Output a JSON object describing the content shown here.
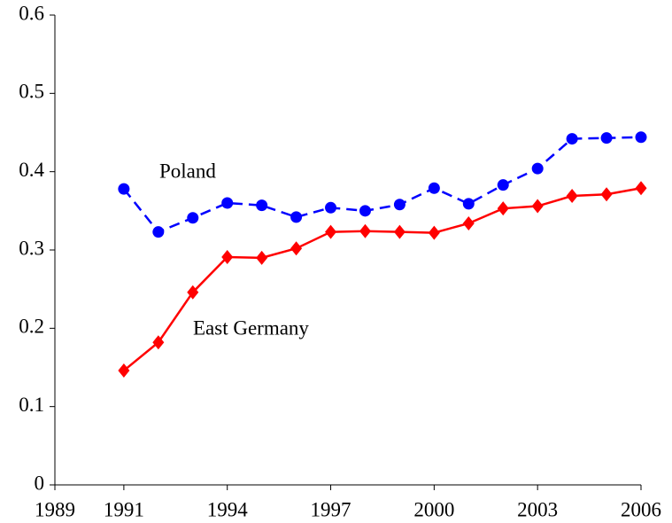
{
  "chart_data": {
    "type": "line",
    "x": [
      1991,
      1992,
      1993,
      1994,
      1995,
      1996,
      1997,
      1998,
      1999,
      2000,
      2001,
      2002,
      2003,
      2004,
      2005,
      2006
    ],
    "series": [
      {
        "name": "Poland",
        "color": "#0000ff",
        "marker": "circle",
        "dashed": true,
        "values": [
          0.378,
          0.323,
          0.341,
          0.36,
          0.357,
          0.342,
          0.354,
          0.35,
          0.358,
          0.379,
          0.359,
          0.383,
          0.404,
          0.442,
          0.443,
          0.444
        ]
      },
      {
        "name": "East Germany",
        "color": "#ff0000",
        "marker": "diamond",
        "dashed": false,
        "values": [
          0.146,
          0.182,
          0.246,
          0.291,
          0.29,
          0.302,
          0.323,
          0.324,
          0.323,
          0.322,
          0.334,
          0.353,
          0.356,
          0.369,
          0.371,
          0.379
        ]
      }
    ],
    "xlim": [
      1989,
      2006
    ],
    "xticks": [
      1989,
      1991,
      1994,
      1997,
      2000,
      2003,
      2006
    ],
    "ylim": [
      0,
      0.6
    ],
    "yticks": [
      0,
      0.1,
      0.2,
      0.3,
      0.4,
      0.5,
      0.6
    ]
  }
}
